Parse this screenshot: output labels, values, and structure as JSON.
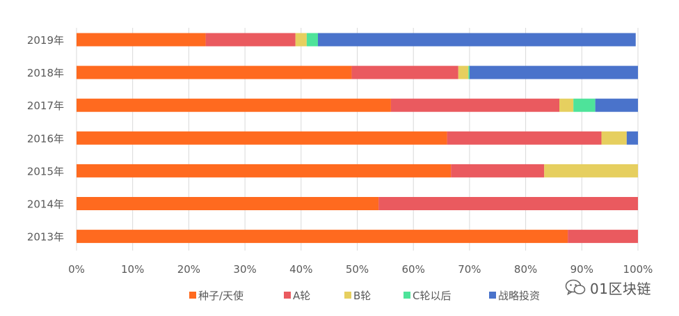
{
  "chart_data": {
    "type": "bar",
    "orientation": "horizontal",
    "stacked": "percent",
    "categories": [
      "2019年",
      "2018年",
      "2017年",
      "2016年",
      "2015年",
      "2014年",
      "2013年"
    ],
    "series": [
      {
        "name": "种子/天使",
        "color": "#FF6A1F",
        "values": [
          23,
          49,
          56,
          66,
          66.7,
          53.8,
          87.5
        ]
      },
      {
        "name": "A轮",
        "color": "#EA5A5F",
        "values": [
          16,
          19,
          30,
          27.5,
          16.6,
          46.2,
          12.5
        ]
      },
      {
        "name": "B轮",
        "color": "#E6CF5F",
        "values": [
          2,
          1.8,
          2.5,
          4.5,
          16.7,
          0,
          0
        ]
      },
      {
        "name": "C轮以后",
        "color": "#4EE39A",
        "values": [
          2,
          0.2,
          3.9,
          0,
          0,
          0,
          0
        ]
      },
      {
        "name": "战略投资",
        "color": "#4A73CB",
        "values": [
          56.6,
          30,
          7.6,
          2,
          0,
          0,
          0
        ]
      }
    ],
    "x_ticks": [
      "0%",
      "10%",
      "20%",
      "30%",
      "40%",
      "50%",
      "60%",
      "70%",
      "80%",
      "90%",
      "100%"
    ],
    "xlim": [
      0,
      100
    ],
    "grid": "vertical",
    "legend": "bottom"
  },
  "watermark": {
    "text": "01区块链"
  }
}
